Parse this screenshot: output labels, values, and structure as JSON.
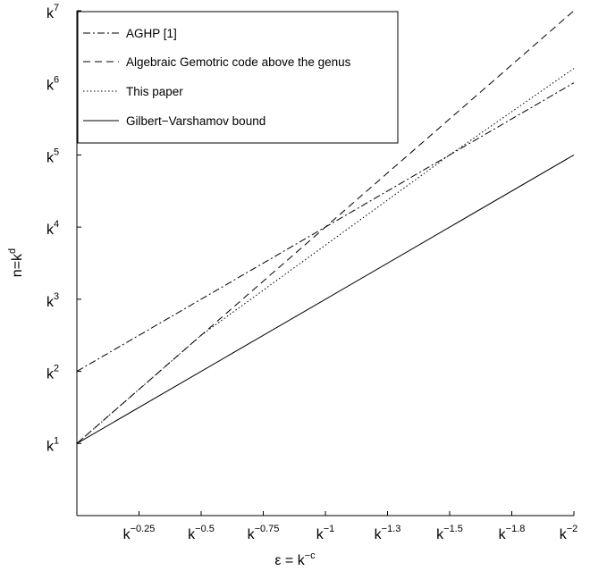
{
  "chart_data": {
    "type": "line",
    "title": "",
    "xlabel": {
      "base": "ε = k",
      "exp": "−c"
    },
    "ylabel": {
      "base": "n=k",
      "exp": "d"
    },
    "x_range": [
      0,
      2
    ],
    "y_range": [
      0,
      7
    ],
    "x_ticks": [
      {
        "value": 0.25,
        "base": "k",
        "exp": "−0.25"
      },
      {
        "value": 0.5,
        "base": "k",
        "exp": "−0.5"
      },
      {
        "value": 0.75,
        "base": "k",
        "exp": "−0.75"
      },
      {
        "value": 1.0,
        "base": "k",
        "exp": "−1"
      },
      {
        "value": 1.25,
        "base": "k",
        "exp": "−1.3"
      },
      {
        "value": 1.5,
        "base": "k",
        "exp": "−1.5"
      },
      {
        "value": 1.75,
        "base": "k",
        "exp": "−1.8"
      },
      {
        "value": 2.0,
        "base": "k",
        "exp": "−2"
      }
    ],
    "y_ticks": [
      {
        "value": 1,
        "base": "k",
        "exp": "1"
      },
      {
        "value": 2,
        "base": "k",
        "exp": "2"
      },
      {
        "value": 3,
        "base": "k",
        "exp": "3"
      },
      {
        "value": 4,
        "base": "k",
        "exp": "4"
      },
      {
        "value": 5,
        "base": "k",
        "exp": "5"
      },
      {
        "value": 6,
        "base": "k",
        "exp": "6"
      },
      {
        "value": 7,
        "base": "k",
        "exp": "7"
      }
    ],
    "grid": false,
    "legend_position": "top-left",
    "series": [
      {
        "name": "AGHP [1]",
        "style": "dashdot",
        "color": "#000000",
        "points": [
          [
            0,
            2
          ],
          [
            1,
            4
          ],
          [
            2,
            6
          ]
        ]
      },
      {
        "name": "Algebraic Gemotric code above the genus",
        "style": "dashed",
        "color": "#000000",
        "points": [
          [
            0,
            1
          ],
          [
            1,
            4
          ],
          [
            2,
            7
          ]
        ]
      },
      {
        "name": "This paper",
        "style": "dotted",
        "color": "#000000",
        "points": [
          [
            0,
            1
          ],
          [
            0.5,
            2.5
          ],
          [
            1,
            3.75
          ],
          [
            1.5,
            5
          ],
          [
            2,
            6.2
          ]
        ]
      },
      {
        "name": "Gilbert−Varshamov bound",
        "style": "solid",
        "color": "#000000",
        "points": [
          [
            0,
            1
          ],
          [
            1,
            3
          ],
          [
            2,
            5
          ]
        ]
      }
    ]
  }
}
